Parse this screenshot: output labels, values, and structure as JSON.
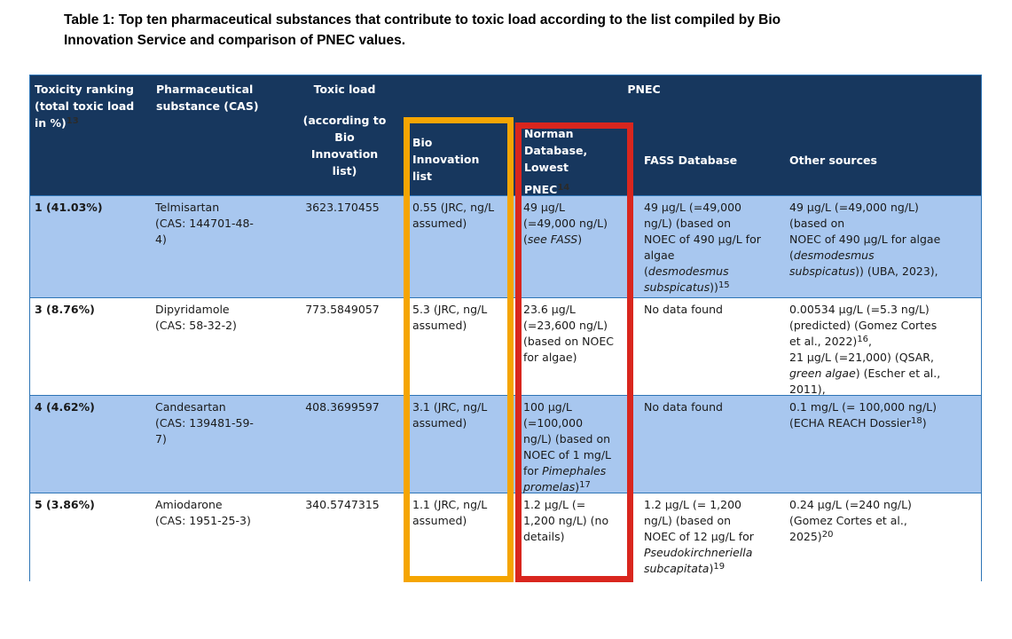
{
  "title": {
    "line1": "Table 1: Top ten pharmaceutical substances that contribute to toxic load according to the list compiled by Bio",
    "line2": "Innovation Service and comparison of PNEC values."
  },
  "colors": {
    "header_bg": "#17375E",
    "row_highlight_bg": "#A8C7EF",
    "table_border": "#2E75B6",
    "box_orange": "#F5A502",
    "box_red": "#D9261E",
    "header_text": "#FFFFFF",
    "body_text": "#1A1A1A"
  },
  "table": {
    "header": {
      "toxicity_ranking": "Toxicity ranking\n(total toxic load\nin %)^13^",
      "pharmaceutical_substance": "Pharmaceutical\nsubstance (CAS)",
      "toxic_load_title": "Toxic load",
      "toxic_load_sub": "(according to\nBio\nInnovation\nlist)",
      "pnec": "PNEC",
      "pnec_sub": {
        "bio_innovation": "Bio\nInnovation\nlist",
        "norman_line1": "Norman\nDatabase,\nLowest",
        "norman_line2": "PNEC^14^",
        "fass": "FASS Database",
        "other": "Other sources"
      }
    },
    "rows": [
      {
        "cells": [
          "1 (41.03%)",
          "Telmisartan\n(CAS: 144701-48-\n4)",
          "3623.170455",
          "0.55 (JRC, ng/L\nassumed)",
          "49 µg/L\n(=49,000 ng/L)\n(*see FASS*)",
          "49 µg/L (=49,000\nng/L) (based on\nNOEC of 490 µg/L for\nalgae\n(*desmodesmus*\n*subspicatus*))^15^",
          "49 µg/L (=49,000 ng/L)\n(based on\nNOEC of 490 µg/L for algae\n(*desmodesmus*\n*subspicatus*)) (UBA, 2023),"
        ]
      },
      {
        "cells": [
          "3 (8.76%)",
          "Dipyridamole\n(CAS: 58-32-2)",
          "773.5849057",
          "5.3 (JRC, ng/L\nassumed)",
          "23.6 µg/L\n(=23,600 ng/L)\n(based on NOEC\nfor algae)",
          "No data found",
          "0.00534 µg/L (=5.3 ng/L)\n(predicted) (Gomez Cortes\net al., 2022)^16^,\n21 µg/L (=21,000) (QSAR,\n*green algae*) (Escher et al.,\n2011),"
        ]
      },
      {
        "cells": [
          "4 (4.62%)",
          "Candesartan\n(CAS: 139481-59-\n7)",
          "408.3699597",
          "3.1 (JRC, ng/L\nassumed)",
          "100 µg/L\n(=100,000\nng/L) (based on\nNOEC of 1 mg/L\nfor *Pimephales*\n*promelas*)^17^",
          "No data found",
          "0.1 mg/L (= 100,000 ng/L)\n(ECHA REACH Dossier^18^)"
        ]
      },
      {
        "cells": [
          "5 (3.86%)",
          "Amiodarone\n(CAS: 1951-25-3)",
          "340.5747315",
          "1.1 (JRC, ng/L\nassumed)",
          "1.2 µg/L (=\n1,200 ng/L) (no\ndetails)",
          "1.2 µg/L (= 1,200\nng/L) (based on\nNOEC of 12 µg/L for\n*Pseudokirchneriella*\n*subcapitata*)^19^",
          "0.24 µg/L (=240 ng/L)\n(Gomez Cortes et al.,\n2025)^20^"
        ]
      }
    ]
  }
}
